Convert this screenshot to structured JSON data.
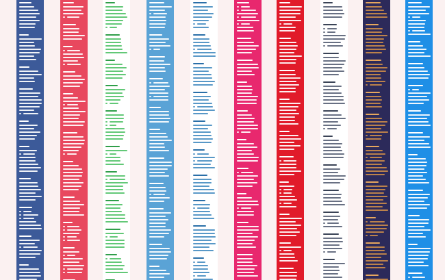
{
  "background": "#fbf1f1",
  "columns": [
    {
      "name": "column-navy",
      "bg": "#3c5a99",
      "line": "#ffffff",
      "accent": "#ffffff"
    },
    {
      "name": "column-coral",
      "bg": "#e8485e",
      "line": "#ffffff",
      "accent": "#ffffff"
    },
    {
      "name": "column-white-green",
      "bg": "#ffffff",
      "line": "#55c36b",
      "accent": "#2f9e49"
    },
    {
      "name": "column-sky",
      "bg": "#5aa3d6",
      "line": "#ffffff",
      "accent": "#ffffff"
    },
    {
      "name": "column-white-blue",
      "bg": "#ffffff",
      "line": "#4a8fc2",
      "accent": "#2a6fa8"
    },
    {
      "name": "column-magenta",
      "bg": "#e8286e",
      "line": "#ffffff",
      "accent": "#ffffff"
    },
    {
      "name": "column-red",
      "bg": "#e11b2a",
      "line": "#ffffff",
      "accent": "#ffffff"
    },
    {
      "name": "column-white-slate",
      "bg": "#ffffff",
      "line": "#5b6478",
      "accent": "#3a4356"
    },
    {
      "name": "column-indigo",
      "bg": "#2c2a5a",
      "line": "#c98a4a",
      "accent": "#e7a75e"
    },
    {
      "name": "column-blue",
      "bg": "#1f8fe6",
      "line": "#ffffff",
      "accent": "#ffffff"
    }
  ]
}
